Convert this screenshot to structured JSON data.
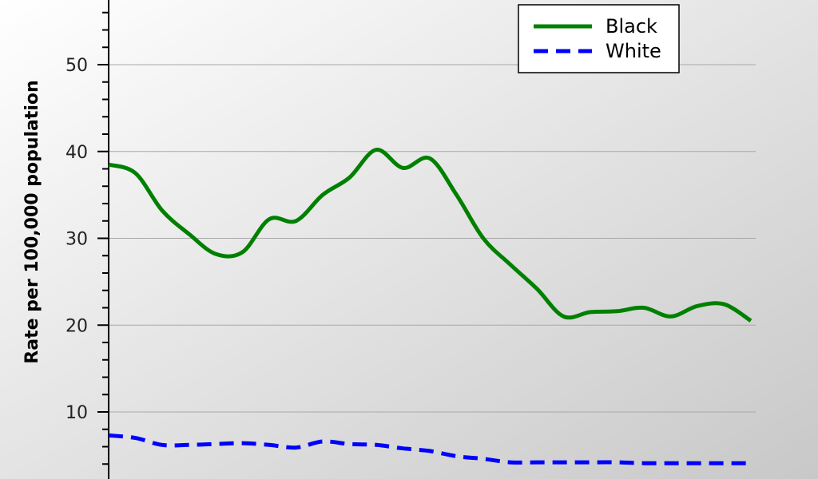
{
  "chart_data": {
    "type": "line",
    "title": "",
    "xlabel": "",
    "ylabel": "Rate per 100,000 population",
    "ylim": [
      0,
      60
    ],
    "yticks": [
      10,
      20,
      30,
      40,
      50
    ],
    "grid": true,
    "legend_position": "top-right",
    "series": [
      {
        "name": "Black",
        "color": "#008000",
        "style": "solid",
        "values": [
          38.5,
          37.5,
          33.2,
          30.5,
          28.2,
          28.4,
          32.2,
          32.0,
          35.0,
          37.0,
          40.2,
          38.1,
          39.2,
          35.0,
          30.0,
          27.0,
          24.2,
          21.0,
          21.5,
          21.6,
          22.0,
          21.0,
          22.2,
          22.4,
          20.5
        ]
      },
      {
        "name": "White",
        "color": "#0000ff",
        "style": "dashed",
        "values": [
          7.3,
          7.0,
          6.2,
          6.2,
          6.3,
          6.4,
          6.2,
          5.9,
          6.6,
          6.3,
          6.2,
          5.8,
          5.5,
          4.9,
          4.6,
          4.2,
          4.2,
          4.2,
          4.2,
          4.2,
          4.1,
          4.1,
          4.1,
          4.1,
          4.1
        ]
      }
    ]
  }
}
